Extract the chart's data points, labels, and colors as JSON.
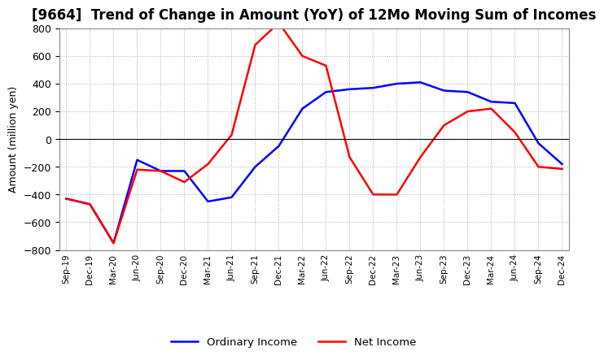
{
  "title": "[9664]  Trend of Change in Amount (YoY) of 12Mo Moving Sum of Incomes",
  "ylabel": "Amount (million yen)",
  "x_labels": [
    "Sep-19",
    "Dec-19",
    "Mar-20",
    "Jun-20",
    "Sep-20",
    "Dec-20",
    "Mar-21",
    "Jun-21",
    "Sep-21",
    "Dec-21",
    "Mar-22",
    "Jun-22",
    "Sep-22",
    "Dec-22",
    "Mar-23",
    "Jun-23",
    "Sep-23",
    "Dec-23",
    "Mar-24",
    "Jun-24",
    "Sep-24",
    "Dec-24"
  ],
  "ordinary_income": [
    -430,
    -470,
    -750,
    -150,
    -230,
    -230,
    -450,
    -420,
    -200,
    -50,
    220,
    340,
    360,
    370,
    400,
    410,
    350,
    340,
    270,
    260,
    -30,
    -180
  ],
  "net_income": [
    -430,
    -470,
    -750,
    -220,
    -230,
    -310,
    -180,
    30,
    680,
    840,
    600,
    530,
    -130,
    -400,
    -400,
    -130,
    100,
    200,
    220,
    50,
    -200,
    -215
  ],
  "ordinary_color": "#0000ff",
  "net_color": "#ff0000",
  "ylim": [
    -800,
    800
  ],
  "yticks": [
    -800,
    -600,
    -400,
    -200,
    0,
    200,
    400,
    600,
    800
  ],
  "grid_color": "#aaaaaa",
  "background_color": "#ffffff",
  "title_fontsize": 12,
  "legend_labels": [
    "Ordinary Income",
    "Net Income"
  ]
}
